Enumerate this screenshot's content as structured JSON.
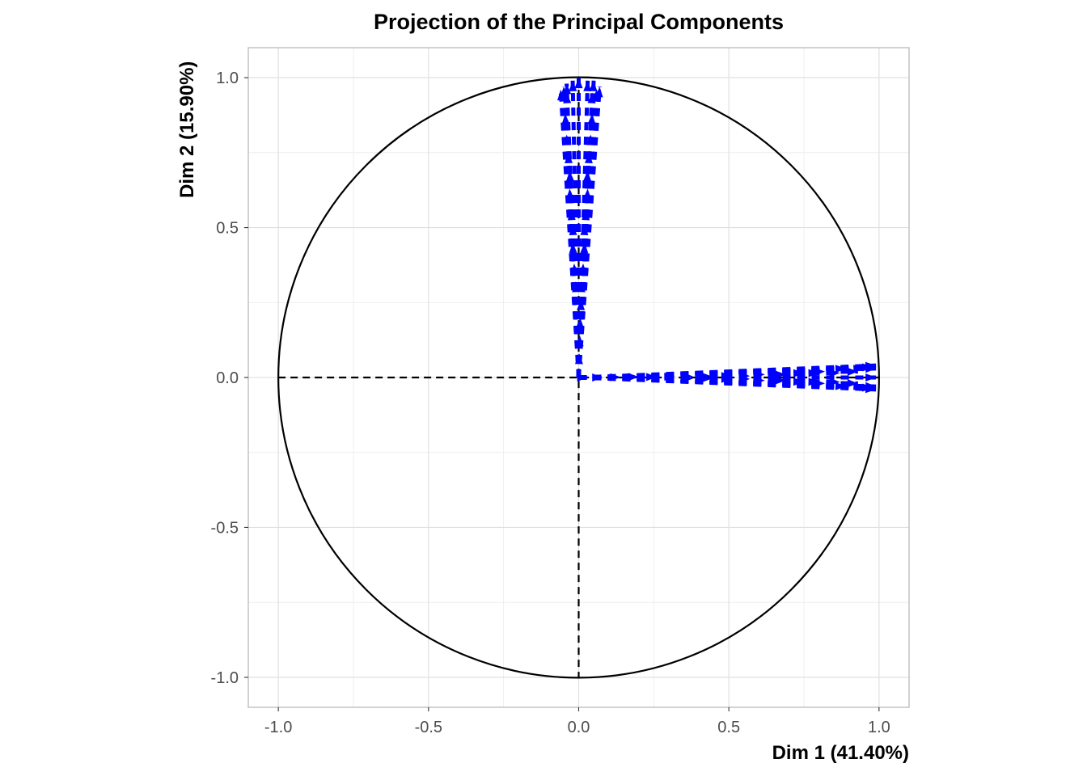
{
  "chart_data": {
    "type": "scatter",
    "title": "Projection of the Principal Components",
    "xlabel": "Dim 1 (41.40%)",
    "ylabel": "Dim 2 (15.90%)",
    "xlim": [
      -1.1,
      1.1
    ],
    "ylim": [
      -1.1,
      1.1
    ],
    "x_ticks": [
      "-1.0",
      "-0.5",
      "0.0",
      "0.5",
      "1.0"
    ],
    "y_ticks": [
      "1.0",
      "0.5",
      "0.0",
      "-0.5",
      "-1.0"
    ],
    "x_tick_values": [
      -1.0,
      -0.5,
      0.0,
      0.5,
      1.0
    ],
    "y_tick_values": [
      1.0,
      0.5,
      0.0,
      -0.5,
      -1.0
    ],
    "grid": true,
    "unit_circle": true,
    "arrow_color": "#0000ff",
    "series": [
      {
        "vectors": [
          {
            "x": 0.99,
            "y": 0.04
          },
          {
            "x": 0.99,
            "y": -0.04
          },
          {
            "x": 0.99,
            "y": 0.03
          },
          {
            "x": 0.99,
            "y": -0.03
          },
          {
            "x": 0.99,
            "y": 0.0
          },
          {
            "x": 0.98,
            "y": 0.035
          },
          {
            "x": 0.98,
            "y": -0.035
          },
          {
            "x": 0.95,
            "y": 0.03
          },
          {
            "x": 0.95,
            "y": -0.03
          },
          {
            "x": 0.93,
            "y": 0.02
          },
          {
            "x": 0.93,
            "y": -0.02
          },
          {
            "x": 0.89,
            "y": 0.03
          },
          {
            "x": 0.89,
            "y": -0.03
          },
          {
            "x": 0.87,
            "y": 0.015
          },
          {
            "x": 0.87,
            "y": -0.015
          },
          {
            "x": 0.82,
            "y": 0.02
          },
          {
            "x": 0.82,
            "y": -0.02
          },
          {
            "x": 0.8,
            "y": 0.015
          },
          {
            "x": 0.8,
            "y": -0.015
          },
          {
            "x": 0.75,
            "y": 0.015
          },
          {
            "x": 0.75,
            "y": -0.015
          },
          {
            "x": 0.69,
            "y": 0.01
          },
          {
            "x": 0.69,
            "y": -0.01
          },
          {
            "x": 0.62,
            "y": 0.01
          },
          {
            "x": 0.62,
            "y": -0.01
          },
          {
            "x": 0.57,
            "y": 0.005
          },
          {
            "x": 0.57,
            "y": -0.005
          },
          {
            "x": 0.51,
            "y": 0.005
          },
          {
            "x": 0.51,
            "y": -0.005
          },
          {
            "x": 0.44,
            "y": 0.005
          },
          {
            "x": 0.44,
            "y": -0.005
          },
          {
            "x": 0.38,
            "y": 0.004
          },
          {
            "x": 0.38,
            "y": -0.004
          },
          {
            "x": 0.32,
            "y": 0.003
          },
          {
            "x": 0.26,
            "y": 0.002
          },
          {
            "x": 0.2,
            "y": 0.002
          },
          {
            "x": 0.14,
            "y": 0.001
          },
          {
            "x": 0.08,
            "y": 0.0
          },
          {
            "x": 0.03,
            "y": 0.0
          },
          {
            "x": -0.06,
            "y": 0.96
          },
          {
            "x": 0.07,
            "y": 0.97
          },
          {
            "x": -0.04,
            "y": 0.98
          },
          {
            "x": 0.05,
            "y": 0.99
          },
          {
            "x": 0.0,
            "y": 1.0
          },
          {
            "x": -0.02,
            "y": 0.99
          },
          {
            "x": 0.03,
            "y": 0.99
          },
          {
            "x": -0.05,
            "y": 0.97
          },
          {
            "x": 0.06,
            "y": 0.96
          },
          {
            "x": -0.04,
            "y": 0.95
          },
          {
            "x": 0.045,
            "y": 0.95
          },
          {
            "x": -0.045,
            "y": 0.88
          },
          {
            "x": 0.045,
            "y": 0.88
          },
          {
            "x": -0.04,
            "y": 0.81
          },
          {
            "x": 0.04,
            "y": 0.81
          },
          {
            "x": -0.035,
            "y": 0.75
          },
          {
            "x": 0.035,
            "y": 0.75
          },
          {
            "x": -0.03,
            "y": 0.69
          },
          {
            "x": 0.03,
            "y": 0.69
          },
          {
            "x": -0.03,
            "y": 0.63
          },
          {
            "x": 0.03,
            "y": 0.63
          },
          {
            "x": -0.025,
            "y": 0.56
          },
          {
            "x": 0.025,
            "y": 0.56
          },
          {
            "x": -0.02,
            "y": 0.51
          },
          {
            "x": 0.02,
            "y": 0.51
          },
          {
            "x": -0.02,
            "y": 0.45
          },
          {
            "x": 0.02,
            "y": 0.45
          },
          {
            "x": -0.015,
            "y": 0.38
          },
          {
            "x": 0.015,
            "y": 0.38
          },
          {
            "x": -0.01,
            "y": 0.32
          },
          {
            "x": 0.01,
            "y": 0.32
          },
          {
            "x": 0.008,
            "y": 0.26
          },
          {
            "x": 0.005,
            "y": 0.2
          },
          {
            "x": 0.004,
            "y": 0.14
          },
          {
            "x": 0.002,
            "y": 0.08
          }
        ]
      }
    ]
  }
}
